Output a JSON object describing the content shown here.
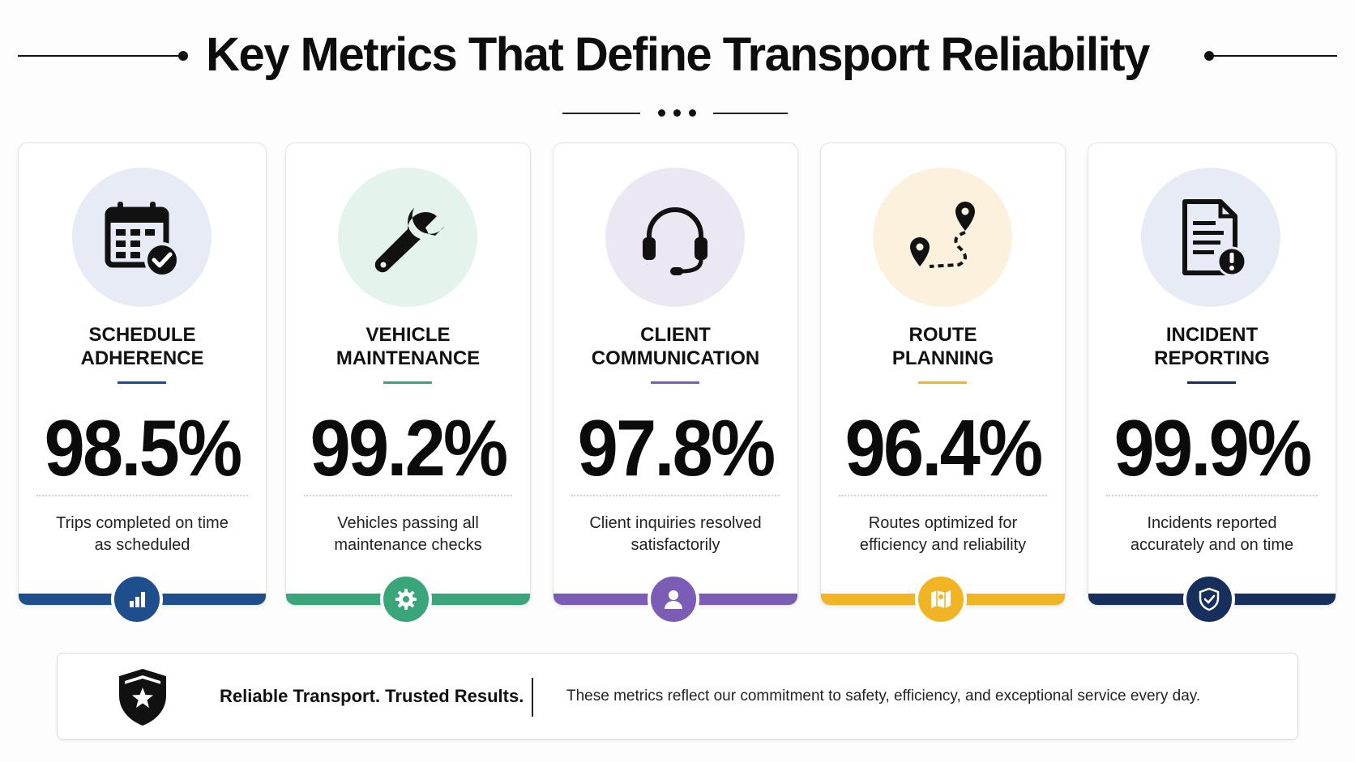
{
  "title": "Key Metrics That Define Transport Reliability",
  "metrics": [
    {
      "title_line1": "SCHEDULE",
      "title_line2": "ADHERENCE",
      "value": "98.5%",
      "desc_line1": "Trips completed on time",
      "desc_line2": "as scheduled",
      "icon": "calendar-check-icon",
      "badge_icon": "bar-chart-icon",
      "accent": "#1f4e8c",
      "tint": "#e6ebf5"
    },
    {
      "title_line1": "VEHICLE",
      "title_line2": "MAINTENANCE",
      "value": "99.2%",
      "desc_line1": "Vehicles passing all",
      "desc_line2": "maintenance checks",
      "icon": "wrench-icon",
      "badge_icon": "gear-icon",
      "accent": "#3aa57a",
      "tint": "#e4f4ec"
    },
    {
      "title_line1": "CLIENT",
      "title_line2": "COMMUNICATION",
      "value": "97.8%",
      "desc_line1": "Client inquiries resolved",
      "desc_line2": "satisfactorily",
      "icon": "headset-icon",
      "badge_icon": "user-icon",
      "accent": "#7b5db5",
      "tint": "#ebe8f3"
    },
    {
      "title_line1": "ROUTE",
      "title_line2": "PLANNING",
      "value": "96.4%",
      "desc_line1": "Routes optimized for",
      "desc_line2": "efficiency and reliability",
      "icon": "route-pins-icon",
      "badge_icon": "map-icon",
      "accent": "#f0b424",
      "tint": "#fcf1dc"
    },
    {
      "title_line1": "INCIDENT",
      "title_line2": "REPORTING",
      "value": "99.9%",
      "desc_line1": "Incidents reported",
      "desc_line2": "accurately and on time",
      "icon": "document-alert-icon",
      "badge_icon": "shield-check-icon",
      "accent": "#162f5c",
      "tint": "#e6ebf5"
    }
  ],
  "footer": {
    "tagline": "Reliable Transport. Trusted Results.",
    "note": "These metrics reflect our commitment to safety, efficiency, and exceptional service every day.",
    "icon": "shield-star-icon"
  }
}
